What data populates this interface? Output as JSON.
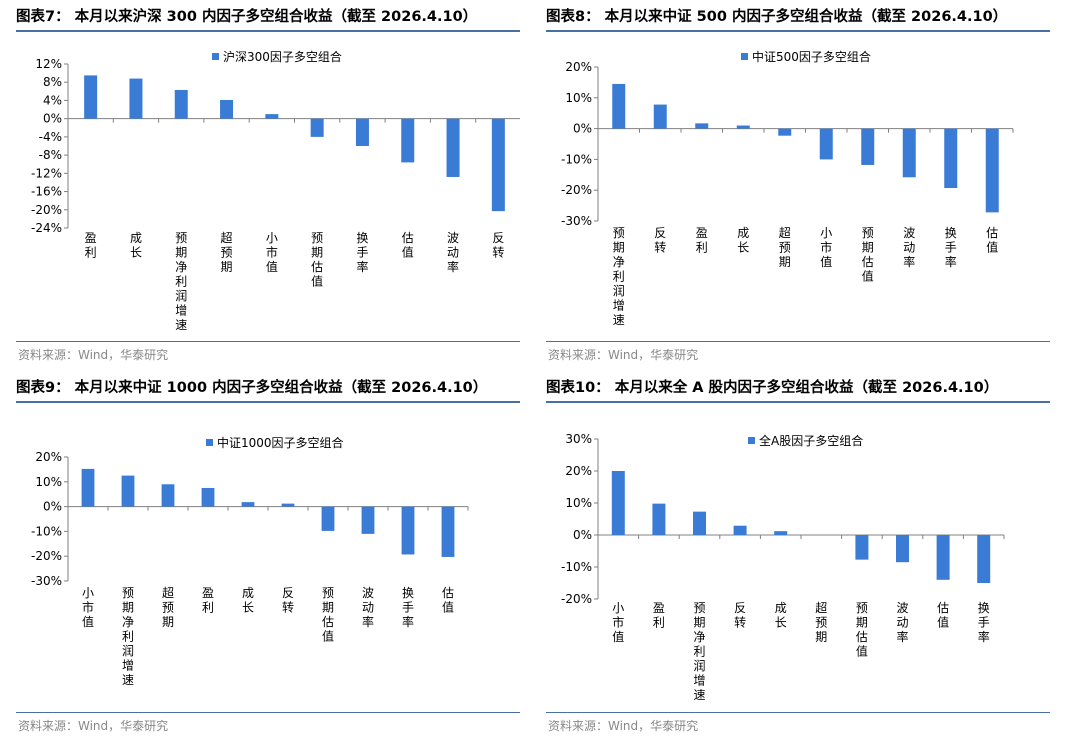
{
  "source_text": "资料来源：Wind，华泰研究",
  "bar_color": "#3a7bd5",
  "chart_data": [
    {
      "type": "bar",
      "title": "图表7：  本月以来沪深 300 内因子多空组合收益（截至 2026.4.10）",
      "legend": "沪深300因子多空组合",
      "categories": [
        "盈利",
        "成长",
        "预期净利润增速",
        "超预期",
        "小市值",
        "预期估值",
        "换手率",
        "估值",
        "波动率",
        "反转"
      ],
      "values": [
        9.5,
        8.8,
        6.3,
        4.1,
        1.0,
        -4.0,
        -6.0,
        -9.6,
        -12.8,
        -20.3
      ],
      "yticks": [
        12,
        8,
        4,
        0,
        -4,
        -8,
        -12,
        -16,
        -20,
        -24
      ],
      "ylim": [
        -24,
        12
      ]
    },
    {
      "type": "bar",
      "title": "图表8：  本月以来中证 500 内因子多空组合收益（截至 2026.4.10）",
      "legend": "中证500因子多空组合",
      "categories": [
        "预期净利润增速",
        "反转",
        "盈利",
        "成长",
        "超预期",
        "小市值",
        "预期估值",
        "波动率",
        "换手率",
        "估值"
      ],
      "values": [
        14.5,
        7.8,
        1.7,
        1.0,
        -2.3,
        -10.0,
        -11.8,
        -15.8,
        -19.3,
        -27.2
      ],
      "yticks": [
        20,
        10,
        0,
        -10,
        -20,
        -30
      ],
      "ylim": [
        -30,
        20
      ]
    },
    {
      "type": "bar",
      "title": "图表9：  本月以来中证 1000 内因子多空组合收益（截至 2026.4.10）",
      "legend": "中证1000因子多空组合",
      "categories": [
        "小市值",
        "预期净利润增速",
        "超预期",
        "盈利",
        "成长",
        "反转",
        "预期估值",
        "波动率",
        "换手率",
        "估值"
      ],
      "values": [
        15.2,
        12.5,
        9.0,
        7.5,
        1.8,
        1.2,
        -9.8,
        -11.0,
        -19.3,
        -20.3
      ],
      "yticks": [
        20,
        10,
        0,
        -10,
        -20,
        -30
      ],
      "ylim": [
        -30,
        20
      ]
    },
    {
      "type": "bar",
      "title": "图表10：  本月以来全 A 股内因子多空组合收益（截至 2026.4.10）",
      "legend": "全A股因子多空组合",
      "categories": [
        "小市值",
        "盈利",
        "预期净利润增速",
        "反转",
        "成长",
        "超预期",
        "预期估值",
        "波动率",
        "估值",
        "换手率"
      ],
      "values": [
        20.0,
        9.8,
        7.3,
        2.9,
        1.2,
        0.0,
        -7.7,
        -8.5,
        -14.0,
        -15.0
      ],
      "yticks": [
        30,
        20,
        10,
        0,
        -10,
        -20
      ],
      "ylim": [
        -20,
        30
      ]
    }
  ]
}
